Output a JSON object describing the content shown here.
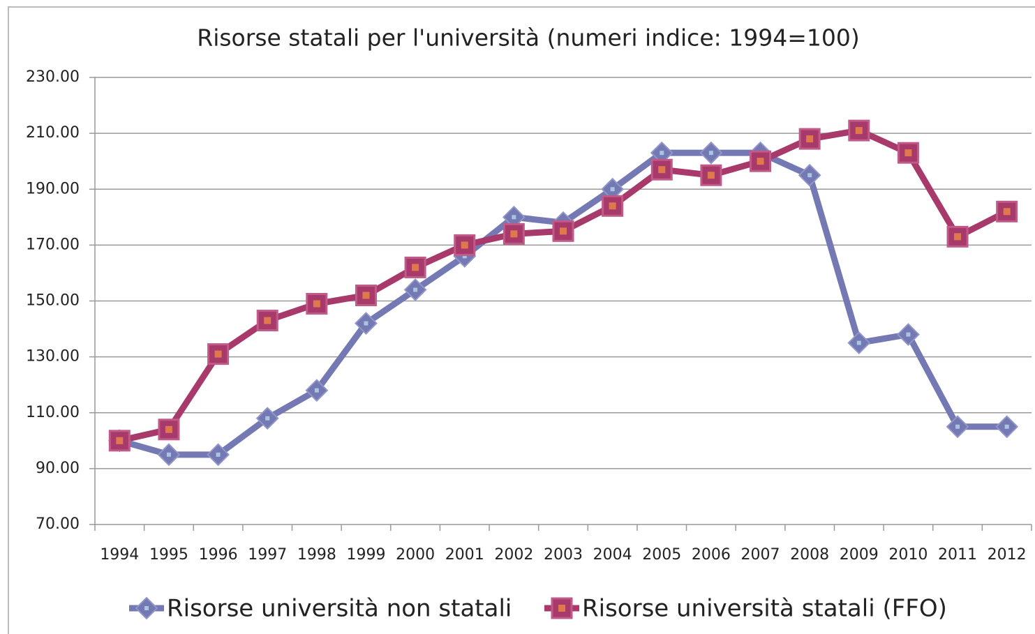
{
  "chart_data": {
    "type": "line",
    "title": "Risorse statali per l'università (numeri indice: 1994=100)",
    "categories": [
      "1994",
      "1995",
      "1996",
      "1997",
      "1998",
      "1999",
      "2000",
      "2001",
      "2002",
      "2003",
      "2004",
      "2005",
      "2006",
      "2007",
      "2008",
      "2009",
      "2010",
      "2011",
      "2012"
    ],
    "series": [
      {
        "name": "Risorse università non statali",
        "color": "#7479b3",
        "marker": "diamond",
        "values": [
          100,
          95,
          95,
          108,
          118,
          142,
          154,
          166,
          180,
          178,
          190,
          203,
          203,
          203,
          195,
          135,
          138,
          105,
          105
        ]
      },
      {
        "name": "Risorse università statali (FFO)",
        "color": "#a8396b",
        "marker": "square",
        "values": [
          100,
          104,
          131,
          143,
          149,
          152,
          162,
          170,
          174,
          175,
          184,
          197,
          195,
          200,
          208,
          211,
          203,
          173,
          182
        ]
      }
    ],
    "ylim": [
      70,
      230
    ],
    "yticks": [
      {
        "value": 70,
        "label": "70.00"
      },
      {
        "value": 90,
        "label": "90.00"
      },
      {
        "value": 110,
        "label": "110.00"
      },
      {
        "value": 130,
        "label": "130.00"
      },
      {
        "value": 150,
        "label": "150.00"
      },
      {
        "value": 170,
        "label": "170.00"
      },
      {
        "value": 190,
        "label": "190.00"
      },
      {
        "value": 210,
        "label": "210.00"
      },
      {
        "value": 230,
        "label": "230.00"
      }
    ],
    "grid": true,
    "legend": "bottom"
  }
}
